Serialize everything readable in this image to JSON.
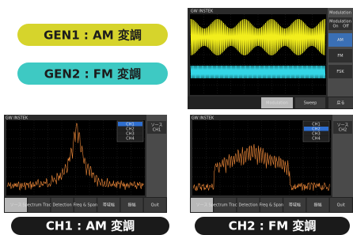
{
  "labels": {
    "gen1": "GEN1 : AM 変調",
    "gen2": "GEN2 : FM 変調",
    "ch1": "CH1 : AM 変調",
    "ch2": "CH2 : FM 変調"
  },
  "generator_screen": {
    "brand": "GW INSTEK",
    "menu_title": "Modulation",
    "toggle_label": "Modulation",
    "on": "On",
    "off": "Off",
    "options": [
      "AM",
      "FM",
      "FSK"
    ],
    "bottom_menu": [
      "Modulation",
      "Sweep",
      "戻る"
    ]
  },
  "spectrum_screens": [
    {
      "brand": "GW INSTEK",
      "channels": [
        "CH1",
        "CH2",
        "CH3",
        "CH4"
      ],
      "side_title": "ソース",
      "side_value": "CH1",
      "bottom_menu": [
        "ソース",
        "Spectrum Traces",
        "Detection",
        "Freq & Span",
        "帯域幅",
        "振幅",
        "Quit"
      ]
    },
    {
      "brand": "GW INSTEK",
      "channels": [
        "CH1",
        "CH2",
        "CH3",
        "CH4"
      ],
      "side_title": "ソース",
      "side_value": "CH2",
      "bottom_menu": [
        "ソース",
        "Spectrum Traces",
        "Detection",
        "Freq & Span",
        "帯域幅",
        "振幅",
        "Quit"
      ]
    }
  ]
}
